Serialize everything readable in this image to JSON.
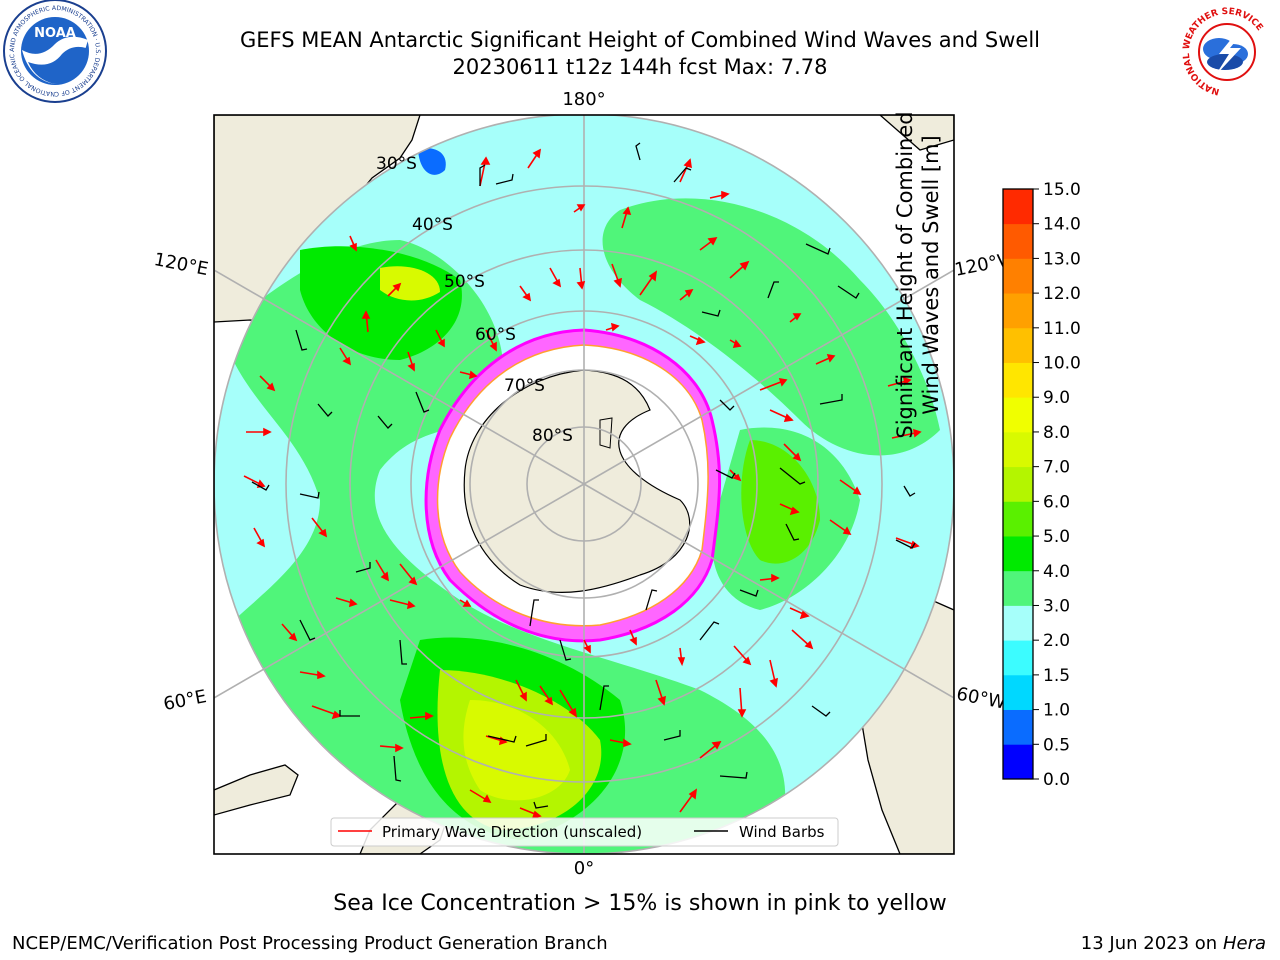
{
  "header": {
    "title_line1": "GEFS MEAN Antarctic Significant Height of Combined Wind Waves and Swell",
    "title_line2": "20230611 t12z 144h fcst   Max: 7.78",
    "left_logo": "noaa-logo",
    "right_logo": "nws-logo",
    "noaa_logo_text": "NOAA",
    "noaa_ring_text": "NATIONAL OCEANIC AND ATMOSPHERIC ADMINISTRATION · U.S. DEPARTMENT OF COMMERCE",
    "nws_ring_text": "NATIONAL WEATHER SERVICE"
  },
  "footer": {
    "center_note": "Sea Ice Concentration > 15% is shown in pink to yellow",
    "producer": "NCEP/EMC/Verification Post Processing Product Generation Branch",
    "date_prefix": "13 Jun 2023 on",
    "host": "Hera"
  },
  "chart_data": {
    "type": "heatmap",
    "projection": "south-polar-stereographic",
    "field": "Significant Height of Combined Wind Waves and Swell [m]",
    "max_value": 7.78,
    "meridian_labels": [
      {
        "label": "180°",
        "lon": 180
      },
      {
        "label": "120°E",
        "lon": 120
      },
      {
        "label": "120°W",
        "lon": -120
      },
      {
        "label": "60°E",
        "lon": 60
      },
      {
        "label": "60°W",
        "lon": -60
      },
      {
        "label": "0°",
        "lon": 0
      }
    ],
    "parallel_labels": [
      "30°S",
      "40°S",
      "50°S",
      "60°S",
      "70°S",
      "80°S"
    ],
    "parallels": [
      -30,
      -40,
      -50,
      -60,
      -70,
      -80
    ],
    "legend": {
      "position": "bottom-center",
      "entries": [
        {
          "label": "Primary Wave Direction (unscaled)",
          "color": "#ff0000"
        },
        {
          "label": "Wind Barbs",
          "color": "#000000"
        }
      ]
    },
    "colorbar": {
      "title_line1": "Significant Height of Combined",
      "title_line2": "Wind Waves and Swell [m]",
      "levels": [
        0.0,
        0.5,
        1.0,
        1.5,
        2.0,
        3.0,
        4.0,
        5.0,
        6.0,
        7.0,
        8.0,
        9.0,
        10.0,
        11.0,
        12.0,
        13.0,
        14.0,
        15.0
      ],
      "tick_labels": [
        "0.0",
        "0.5",
        "1.0",
        "1.5",
        "2.0",
        "3.0",
        "4.0",
        "5.0",
        "6.0",
        "7.0",
        "8.0",
        "9.0",
        "10.0",
        "11.0",
        "12.0",
        "13.0",
        "14.0",
        "15.0"
      ],
      "colors": [
        "#0000ff",
        "#0a6cff",
        "#00d8ff",
        "#3cfcff",
        "#a6fffa",
        "#50f57a",
        "#00ea00",
        "#5af000",
        "#b4f500",
        "#d8fa00",
        "#f0ff00",
        "#ffe600",
        "#ffc000",
        "#ffa000",
        "#ff8000",
        "#ff5a00",
        "#ff2a00"
      ]
    }
  }
}
